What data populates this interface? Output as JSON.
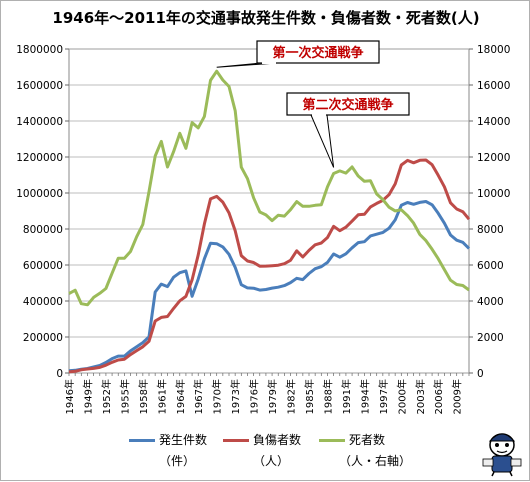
{
  "chart_data": {
    "type": "line",
    "title": "1946年～2011年の交通事故発生件数・負傷者数・死者数(人)",
    "left_axis": {
      "min": 0,
      "max": 1800000,
      "step": 200000,
      "ticks": [
        "0",
        "200000",
        "400000",
        "600000",
        "800000",
        "1000000",
        "1200000",
        "1400000",
        "1600000",
        "1800000"
      ]
    },
    "right_axis": {
      "min": 0,
      "max": 18000,
      "step": 2000,
      "ticks": [
        "0",
        "2000",
        "4000",
        "6000",
        "8000",
        "10000",
        "12000",
        "14000",
        "16000",
        "18000"
      ]
    },
    "x_tick_labels": [
      "1946年",
      "1949年",
      "1952年",
      "1955年",
      "1958年",
      "1961年",
      "1964年",
      "1967年",
      "1970年",
      "1973年",
      "1976年",
      "1979年",
      "1982年",
      "1985年",
      "1988年",
      "1991年",
      "1994年",
      "1997年",
      "2000年",
      "2003年",
      "2006年",
      "2009年"
    ],
    "x": [
      1946,
      1947,
      1948,
      1949,
      1950,
      1951,
      1952,
      1953,
      1954,
      1955,
      1956,
      1957,
      1958,
      1959,
      1960,
      1961,
      1962,
      1963,
      1964,
      1965,
      1966,
      1967,
      1968,
      1969,
      1970,
      1971,
      1972,
      1973,
      1974,
      1975,
      1976,
      1977,
      1978,
      1979,
      1980,
      1981,
      1982,
      1983,
      1984,
      1985,
      1986,
      1987,
      1988,
      1989,
      1990,
      1991,
      1992,
      1993,
      1994,
      1995,
      1996,
      1997,
      1998,
      1999,
      2000,
      2001,
      2002,
      2003,
      2004,
      2005,
      2006,
      2007,
      2008,
      2009,
      2010,
      2011
    ],
    "series": [
      {
        "name": "発生件数",
        "unit": "（件）",
        "axis": "left",
        "color": "#4a7ebb",
        "values": [
          12504,
          15200,
          21341,
          25113,
          33212,
          41423,
          58487,
          80019,
          93869,
          93981,
          122691,
          146285,
          168799,
          201292,
          449917,
          493693,
          479825,
          531966,
          557183,
          567286,
          425944,
          521481,
          635056,
          720880,
          718080,
          700290,
          659283,
          586713,
          490452,
          472938,
          471041,
          460649,
          464037,
          471573,
          476677,
          485578,
          502261,
          526362,
          518642,
          552788,
          579190,
          590723,
          614481,
          661363,
          643097,
          662388,
          695346,
          724675,
          729461,
          761794,
          771084,
          780399,
          803878,
          850363,
          931934,
          947253,
          936950,
          947993,
          952709,
          934339,
          887267,
          832454,
          766394,
          737637,
          725924,
          691937
        ]
      },
      {
        "name": "負傷者数",
        "unit": "（人）",
        "axis": "left",
        "color": "#be4b48",
        "values": [
          5923,
          9500,
          17609,
          22242,
          25450,
          31274,
          43321,
          59280,
          72390,
          76501,
          102072,
          124530,
          145432,
          175951,
          289156,
          308697,
          313813,
          359089,
          401117,
          425666,
          517775,
          655377,
          828071,
          967000,
          981096,
          949689,
          889198,
          789948,
          651420,
          622467,
          613957,
          593211,
          594116,
          596282,
          598719,
          607346,
          626192,
          678985,
          644321,
          681346,
          712330,
          722179,
          752845,
          814832,
          790295,
          810245,
          844003,
          878633,
          881723,
          922677,
          942204,
          958925,
          990675,
          1050397,
          1155707,
          1181039,
          1168029,
          1181431,
          1183120,
          1157113,
          1098199,
          1034445,
          945504,
          911215,
          896208,
          854610
        ]
      },
      {
        "name": "死者数",
        "unit": "（人・右軸）",
        "axis": "right",
        "color": "#9bbb59",
        "values": [
          4409,
          4600,
          3848,
          3790,
          4202,
          4429,
          4696,
          5544,
          6374,
          6379,
          6751,
          7575,
          8248,
          10079,
          12055,
          12865,
          11445,
          12301,
          13318,
          12484,
          13904,
          13618,
          14256,
          16257,
          16765,
          16278,
          15918,
          14574,
          11432,
          10792,
          9734,
          8945,
          8783,
          8466,
          8760,
          8719,
          9073,
          9520,
          9262,
          9261,
          9317,
          9347,
          10344,
          11086,
          11227,
          11105,
          11451,
          10942,
          10649,
          10679,
          9942,
          9640,
          9211,
          9006,
          9066,
          8747,
          8326,
          7702,
          7358,
          6871,
          6352,
          5744,
          5155,
          4914,
          4863,
          4611
        ]
      }
    ],
    "annotations": [
      {
        "text": "第一次交通戦争",
        "x": 1970,
        "series": "死者数"
      },
      {
        "text": "第二次交通戦争",
        "x": 1992,
        "series": "死者数"
      }
    ],
    "grid": true,
    "legend_position": "bottom"
  }
}
